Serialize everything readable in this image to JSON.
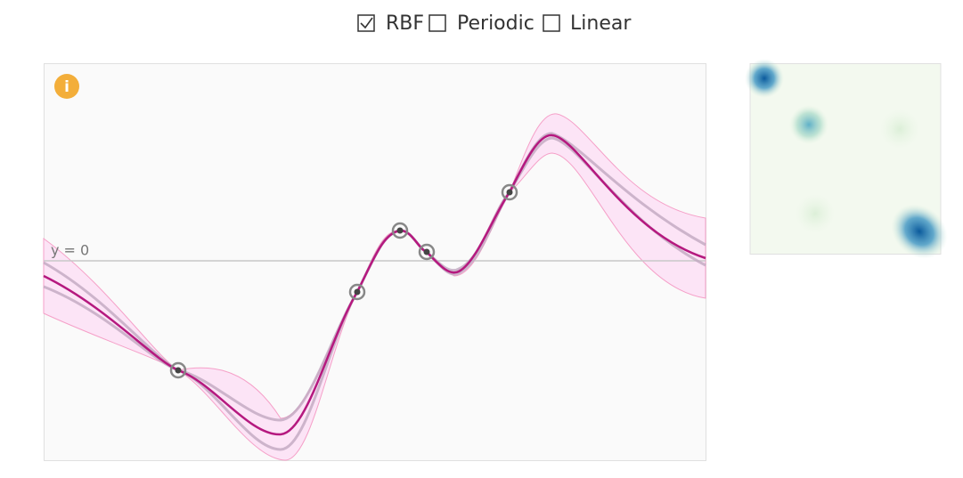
{
  "kernels": [
    {
      "label": "RBF",
      "checked": true
    },
    {
      "label": "Periodic",
      "checked": false
    },
    {
      "label": "Linear",
      "checked": false
    }
  ],
  "plot": {
    "zero_label": "y = 0",
    "info_icon": "i"
  }
}
